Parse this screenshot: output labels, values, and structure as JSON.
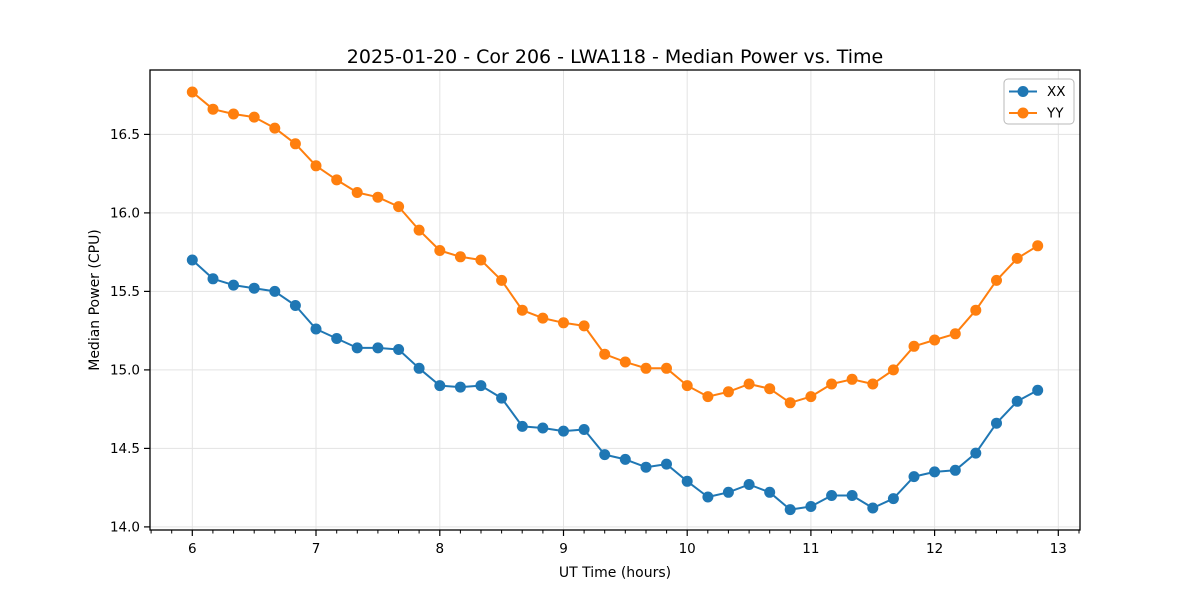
{
  "chart_data": {
    "type": "line",
    "title": "2025-01-20 - Cor 206 - LWA118 - Median Power vs. Time",
    "xlabel": "UT Time (hours)",
    "ylabel": "Median Power (CPU)",
    "xlim": [
      5.658,
      13.175
    ],
    "ylim": [
      13.98,
      16.91
    ],
    "grid": true,
    "legend_position": "upper right",
    "marker": "circle",
    "x_ticks": [
      6,
      7,
      8,
      9,
      10,
      11,
      12,
      13
    ],
    "x_tick_labels": [
      "6",
      "7",
      "8",
      "9",
      "10",
      "11",
      "12",
      "13"
    ],
    "x_minor_ticks_per_hour": 6,
    "y_ticks": [
      14.0,
      14.5,
      15.0,
      15.5,
      16.0,
      16.5
    ],
    "y_tick_labels": [
      "14.0",
      "14.5",
      "15.0",
      "15.5",
      "16.0",
      "16.5"
    ],
    "x": [
      6.0,
      6.167,
      6.333,
      6.5,
      6.667,
      6.833,
      7.0,
      7.167,
      7.333,
      7.5,
      7.667,
      7.833,
      8.0,
      8.167,
      8.333,
      8.5,
      8.667,
      8.833,
      9.0,
      9.167,
      9.333,
      9.5,
      9.667,
      9.833,
      10.0,
      10.167,
      10.333,
      10.5,
      10.667,
      10.833,
      11.0,
      11.167,
      11.333,
      11.5,
      11.667,
      11.833,
      12.0,
      12.167,
      12.333,
      12.5,
      12.667,
      12.833
    ],
    "series": [
      {
        "name": "XX",
        "color": "#1f77b4",
        "values": [
          15.7,
          15.58,
          15.54,
          15.52,
          15.5,
          15.41,
          15.26,
          15.2,
          15.14,
          15.14,
          15.13,
          15.01,
          14.9,
          14.89,
          14.9,
          14.82,
          14.64,
          14.63,
          14.61,
          14.62,
          14.46,
          14.43,
          14.38,
          14.4,
          14.29,
          14.19,
          14.22,
          14.27,
          14.22,
          14.11,
          14.13,
          14.2,
          14.2,
          14.12,
          14.18,
          14.32,
          14.35,
          14.36,
          14.47,
          14.66,
          14.8,
          14.87
        ]
      },
      {
        "name": "YY",
        "color": "#ff7f0e",
        "values": [
          16.77,
          16.66,
          16.63,
          16.61,
          16.54,
          16.44,
          16.3,
          16.21,
          16.13,
          16.1,
          16.04,
          15.89,
          15.76,
          15.72,
          15.7,
          15.57,
          15.38,
          15.33,
          15.3,
          15.28,
          15.1,
          15.05,
          15.01,
          15.01,
          14.9,
          14.83,
          14.86,
          14.91,
          14.88,
          14.79,
          14.83,
          14.91,
          14.94,
          14.91,
          15.0,
          15.15,
          15.19,
          15.23,
          15.38,
          15.57,
          15.71,
          15.79
        ]
      }
    ]
  }
}
